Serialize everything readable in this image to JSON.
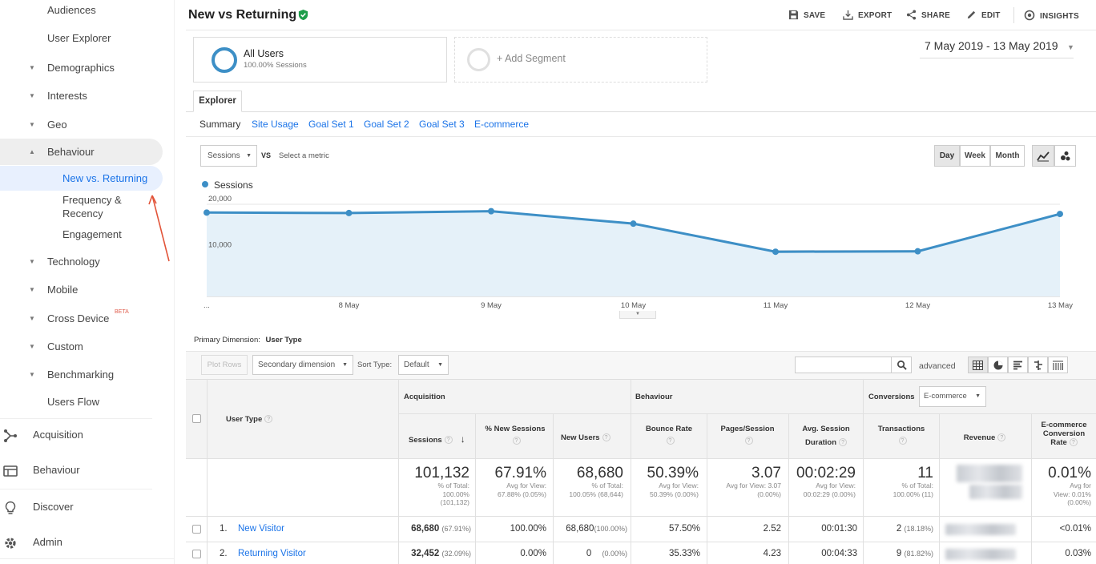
{
  "sidebar": {
    "items": [
      {
        "label": "Audiences",
        "caret": ""
      },
      {
        "label": "User Explorer",
        "caret": ""
      },
      {
        "label": "Demographics",
        "caret": "▼"
      },
      {
        "label": "Interests",
        "caret": "▼"
      },
      {
        "label": "Geo",
        "caret": "▼"
      },
      {
        "label": "Behaviour",
        "caret": "▲"
      },
      {
        "label": "New vs. Returning",
        "caret": ""
      },
      {
        "label": "Frequency &",
        "caret": ""
      },
      {
        "label": "Recency",
        "caret": ""
      },
      {
        "label": "Engagement",
        "caret": ""
      },
      {
        "label": "Technology",
        "caret": "▼"
      },
      {
        "label": "Mobile",
        "caret": "▼"
      },
      {
        "label": "Cross Device",
        "caret": "▼"
      },
      {
        "label": "Custom",
        "caret": "▼"
      },
      {
        "label": "Benchmarking",
        "caret": "▼"
      },
      {
        "label": "Users Flow",
        "caret": ""
      }
    ],
    "beta": "BETA",
    "sections": [
      {
        "label": "Acquisition",
        "icon": "acquisition-icon"
      },
      {
        "label": "Behaviour",
        "icon": "behaviour-icon"
      },
      {
        "label": "Discover",
        "icon": "discover-icon"
      },
      {
        "label": "Admin",
        "icon": "gear-icon"
      }
    ]
  },
  "header": {
    "title": "New vs Returning",
    "actions": {
      "save": "SAVE",
      "export": "EXPORT",
      "share": "SHARE",
      "edit": "EDIT",
      "insights": "INSIGHTS"
    }
  },
  "segments": {
    "active_name": "All Users",
    "active_sub": "100.00% Sessions",
    "add": "+ Add Segment"
  },
  "date_range": "7 May 2019 - 13 May 2019",
  "explorer_tab": "Explorer",
  "subtabs": [
    "Summary",
    "Site Usage",
    "Goal Set 1",
    "Goal Set 2",
    "Goal Set 3",
    "E-commerce"
  ],
  "chart_controls": {
    "metric": "Sessions",
    "vs": "VS",
    "select_metric": "Select a metric",
    "periods": [
      "Day",
      "Week",
      "Month"
    ]
  },
  "chart_data": {
    "type": "area",
    "series": [
      {
        "name": "Sessions",
        "values": [
          18200,
          18100,
          18500,
          15800,
          9700,
          9800,
          17900
        ]
      }
    ],
    "x": [
      "7 May",
      "8 May",
      "9 May",
      "10 May",
      "11 May",
      "12 May",
      "13 May"
    ],
    "x_tick_labels": [
      "...",
      "8 May",
      "9 May",
      "10 May",
      "11 May",
      "12 May",
      "13 May"
    ],
    "y_ticks": [
      "20,000",
      "10,000"
    ],
    "ylim": [
      0,
      20000
    ],
    "accent_color": "#3d8fc6"
  },
  "table": {
    "primary_dimension_label": "Primary Dimension:",
    "primary_dimension_value": "User Type",
    "plot_rows": "Plot Rows",
    "secondary_dimension": "Secondary dimension",
    "sort_type_label": "Sort Type:",
    "sort_type_value": "Default",
    "advanced": "advanced",
    "groups": {
      "acquisition": "Acquisition",
      "behaviour": "Behaviour",
      "conversions": "Conversions",
      "conversions_select": "E-commerce"
    },
    "columns": {
      "user_type": "User Type",
      "sessions": "Sessions",
      "new_sessions": "% New Sessions",
      "new_users": "New Users",
      "bounce_rate": "Bounce Rate",
      "pages_session": "Pages/Session",
      "avg_session_1": "Avg. Session",
      "avg_session_2": "Duration",
      "transactions": "Transactions",
      "revenue": "Revenue",
      "ecr_1": "E-commerce",
      "ecr_2": "Conversion",
      "ecr_3": "Rate"
    },
    "totals": {
      "sessions": "101,132",
      "sessions_sub": [
        "% of Total:",
        "100.00%",
        "(101,132)"
      ],
      "new_sessions": "67.91%",
      "new_sessions_sub": [
        "Avg for View:",
        "67.88% (0.05%)"
      ],
      "new_users": "68,680",
      "new_users_sub": [
        "% of Total:",
        "100.05% (68,644)"
      ],
      "bounce_rate": "50.39%",
      "bounce_rate_sub": [
        "Avg for View:",
        "50.39% (0.00%)"
      ],
      "pages_session": "3.07",
      "pages_session_sub": [
        "Avg for View: 3.07",
        "(0.00%)"
      ],
      "avg_duration": "00:02:29",
      "avg_duration_sub": [
        "Avg for View:",
        "00:02:29 (0.00%)"
      ],
      "transactions": "11",
      "transactions_sub": [
        "% of Total:",
        "100.00% (11)"
      ],
      "ecr": "0.01%",
      "ecr_sub": [
        "Avg for",
        "View: 0.01%",
        "(0.00%)"
      ]
    },
    "rows": [
      {
        "num": "1.",
        "user_type": "New Visitor",
        "sessions": "68,680",
        "sessions_pct": "(67.91%)",
        "new_sessions": "100.00%",
        "new_users": "68,680",
        "new_users_pct": "(100.00%)",
        "bounce_rate": "57.50%",
        "pages_session": "2.52",
        "avg_duration": "00:01:30",
        "transactions": "2",
        "transactions_pct": "(18.18%)",
        "ecr": "<0.01%"
      },
      {
        "num": "2.",
        "user_type": "Returning Visitor",
        "sessions": "32,452",
        "sessions_pct": "(32.09%)",
        "new_sessions": "0.00%",
        "new_users": "0",
        "new_users_pct": "(0.00%)",
        "bounce_rate": "35.33%",
        "pages_session": "4.23",
        "avg_duration": "00:04:33",
        "transactions": "9",
        "transactions_pct": "(81.82%)",
        "ecr": "0.03%"
      }
    ]
  }
}
